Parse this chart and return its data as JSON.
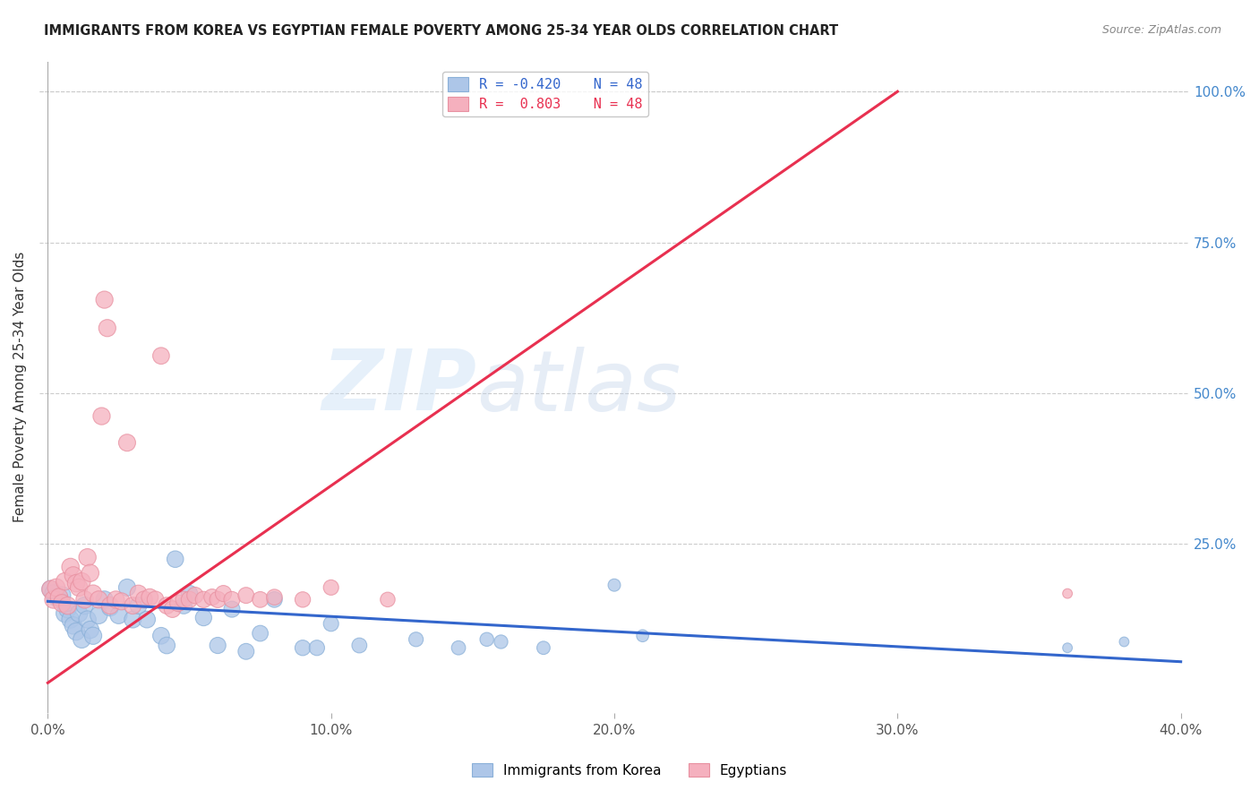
{
  "title": "IMMIGRANTS FROM KOREA VS EGYPTIAN FEMALE POVERTY AMONG 25-34 YEAR OLDS CORRELATION CHART",
  "source": "Source: ZipAtlas.com",
  "ylabel": "Female Poverty Among 25-34 Year Olds",
  "xlim": [
    0.0,
    0.4
  ],
  "ylim": [
    0.0,
    1.05
  ],
  "xtick_labels": [
    "0.0%",
    "10.0%",
    "20.0%",
    "30.0%",
    "40.0%"
  ],
  "xtick_vals": [
    0.0,
    0.1,
    0.2,
    0.3,
    0.4
  ],
  "ytick_labels_right": [
    "100.0%",
    "75.0%",
    "50.0%",
    "25.0%"
  ],
  "ytick_vals_right": [
    1.0,
    0.75,
    0.5,
    0.25
  ],
  "korea_color": "#adc6e8",
  "egypt_color": "#f5b0be",
  "korea_line_color": "#3366cc",
  "egypt_line_color": "#e83050",
  "legend_korea_R": "-0.420",
  "legend_korea_N": "48",
  "legend_egypt_R": "0.803",
  "legend_egypt_N": "48",
  "watermark_zip": "ZIP",
  "watermark_atlas": "atlas",
  "background_color": "#ffffff",
  "korea_line_x": [
    0.0,
    0.4
  ],
  "korea_line_y": [
    0.155,
    0.055
  ],
  "egypt_line_x": [
    0.0,
    0.3
  ],
  "egypt_line_y": [
    0.02,
    1.0
  ],
  "korea_scatter": [
    [
      0.001,
      0.175
    ],
    [
      0.002,
      0.168
    ],
    [
      0.003,
      0.162
    ],
    [
      0.004,
      0.16
    ],
    [
      0.005,
      0.165
    ],
    [
      0.006,
      0.135
    ],
    [
      0.007,
      0.142
    ],
    [
      0.008,
      0.125
    ],
    [
      0.009,
      0.115
    ],
    [
      0.01,
      0.105
    ],
    [
      0.011,
      0.135
    ],
    [
      0.012,
      0.092
    ],
    [
      0.013,
      0.148
    ],
    [
      0.014,
      0.125
    ],
    [
      0.015,
      0.108
    ],
    [
      0.016,
      0.098
    ],
    [
      0.018,
      0.132
    ],
    [
      0.02,
      0.158
    ],
    [
      0.022,
      0.145
    ],
    [
      0.025,
      0.132
    ],
    [
      0.028,
      0.178
    ],
    [
      0.03,
      0.125
    ],
    [
      0.032,
      0.148
    ],
    [
      0.035,
      0.125
    ],
    [
      0.04,
      0.098
    ],
    [
      0.042,
      0.082
    ],
    [
      0.045,
      0.225
    ],
    [
      0.048,
      0.148
    ],
    [
      0.05,
      0.168
    ],
    [
      0.055,
      0.128
    ],
    [
      0.06,
      0.082
    ],
    [
      0.065,
      0.142
    ],
    [
      0.07,
      0.072
    ],
    [
      0.075,
      0.102
    ],
    [
      0.08,
      0.158
    ],
    [
      0.09,
      0.078
    ],
    [
      0.095,
      0.078
    ],
    [
      0.1,
      0.118
    ],
    [
      0.11,
      0.082
    ],
    [
      0.13,
      0.092
    ],
    [
      0.145,
      0.078
    ],
    [
      0.155,
      0.092
    ],
    [
      0.16,
      0.088
    ],
    [
      0.175,
      0.078
    ],
    [
      0.2,
      0.182
    ],
    [
      0.21,
      0.098
    ],
    [
      0.36,
      0.078
    ],
    [
      0.38,
      0.088
    ]
  ],
  "egypt_scatter": [
    [
      0.001,
      0.175
    ],
    [
      0.002,
      0.158
    ],
    [
      0.003,
      0.178
    ],
    [
      0.004,
      0.162
    ],
    [
      0.005,
      0.152
    ],
    [
      0.006,
      0.188
    ],
    [
      0.007,
      0.148
    ],
    [
      0.008,
      0.212
    ],
    [
      0.009,
      0.198
    ],
    [
      0.01,
      0.185
    ],
    [
      0.011,
      0.178
    ],
    [
      0.012,
      0.188
    ],
    [
      0.013,
      0.158
    ],
    [
      0.014,
      0.228
    ],
    [
      0.015,
      0.202
    ],
    [
      0.016,
      0.168
    ],
    [
      0.018,
      0.158
    ],
    [
      0.019,
      0.462
    ],
    [
      0.02,
      0.655
    ],
    [
      0.021,
      0.608
    ],
    [
      0.022,
      0.148
    ],
    [
      0.024,
      0.158
    ],
    [
      0.026,
      0.155
    ],
    [
      0.028,
      0.418
    ],
    [
      0.03,
      0.148
    ],
    [
      0.032,
      0.168
    ],
    [
      0.034,
      0.158
    ],
    [
      0.036,
      0.162
    ],
    [
      0.038,
      0.158
    ],
    [
      0.04,
      0.562
    ],
    [
      0.042,
      0.148
    ],
    [
      0.044,
      0.142
    ],
    [
      0.046,
      0.152
    ],
    [
      0.048,
      0.158
    ],
    [
      0.05,
      0.158
    ],
    [
      0.052,
      0.165
    ],
    [
      0.055,
      0.158
    ],
    [
      0.058,
      0.162
    ],
    [
      0.06,
      0.158
    ],
    [
      0.062,
      0.168
    ],
    [
      0.065,
      0.158
    ],
    [
      0.07,
      0.165
    ],
    [
      0.075,
      0.158
    ],
    [
      0.08,
      0.162
    ],
    [
      0.09,
      0.158
    ],
    [
      0.1,
      0.178
    ],
    [
      0.12,
      0.158
    ],
    [
      0.36,
      0.168
    ]
  ]
}
